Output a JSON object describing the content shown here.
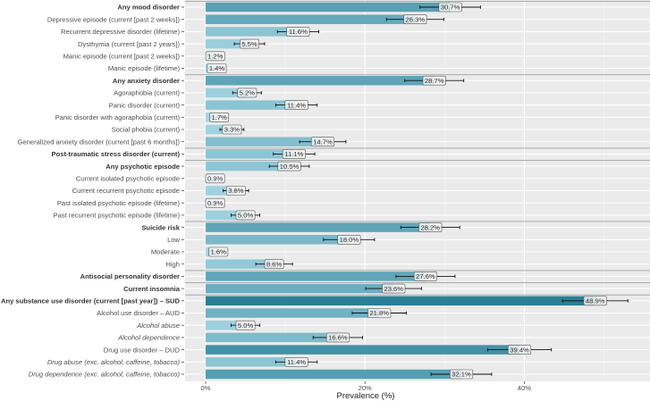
{
  "chart_data": {
    "type": "bar",
    "orientation": "horizontal",
    "title": "",
    "xlabel": "Prevalence (%)",
    "ylabel": "",
    "xlim": [
      0,
      55.8
    ],
    "x_ticks": [
      0,
      20,
      40
    ],
    "x_tick_labels": [
      "0%",
      "20%",
      "40%"
    ],
    "grid": true,
    "legend": "none",
    "color_low": "#a9d9e6",
    "color_high": "#2a7f96",
    "items": [
      {
        "label": "Any mood disorder",
        "value": 30.7,
        "ci": [
          26.9,
          34.5
        ],
        "style": "bold",
        "group_start": true
      },
      {
        "label": "Depressive episode (current [past 2 weeks])",
        "value": 26.3,
        "ci": [
          22.7,
          29.9
        ]
      },
      {
        "label": "Recurrent depressive disorder (lifetime)",
        "value": 11.6,
        "ci": [
          9.0,
          14.2
        ]
      },
      {
        "label": "Dysthymia (current [past 2 years])",
        "value": 5.5,
        "ci": [
          3.6,
          7.4
        ]
      },
      {
        "label": "Manic episode (current [past 2 weeks])",
        "value": 1.2,
        "ci": [
          0.3,
          2.1
        ]
      },
      {
        "label": "Manic episode (lifetime)",
        "value": 1.4,
        "ci": [
          0.4,
          2.4
        ]
      },
      {
        "label": "Any anxiety disorder",
        "value": 28.7,
        "ci": [
          25.0,
          32.4
        ],
        "style": "bold",
        "group_start": true
      },
      {
        "label": "Agoraphobia (current)",
        "value": 5.2,
        "ci": [
          3.4,
          7.0
        ]
      },
      {
        "label": "Panic disorder (current)",
        "value": 11.4,
        "ci": [
          8.8,
          14.0
        ]
      },
      {
        "label": "Panic disorder with agoraphobia (current)",
        "value": 1.7,
        "ci": [
          0.6,
          2.8
        ]
      },
      {
        "label": "Social phobia (current)",
        "value": 3.3,
        "ci": [
          1.8,
          4.8
        ]
      },
      {
        "label": "Generalized anxiety disorder (current [past 6 months])",
        "value": 14.7,
        "ci": [
          11.8,
          17.6
        ]
      },
      {
        "label": "Post-traumatic stress disorder (current)",
        "value": 11.1,
        "ci": [
          8.5,
          13.7
        ],
        "style": "bold",
        "group_start": true
      },
      {
        "label": "Any psychotic episode",
        "value": 10.5,
        "ci": [
          8.0,
          13.0
        ],
        "style": "bold",
        "group_start": true
      },
      {
        "label": "Current isolated psychotic episode",
        "value": 0.9,
        "ci": null
      },
      {
        "label": "Current recurrent psychotic episode",
        "value": 3.8,
        "ci": [
          2.2,
          5.4
        ]
      },
      {
        "label": "Past isolated psychotic episode (lifetime)",
        "value": 0.9,
        "ci": null
      },
      {
        "label": "Past recurrent psychotic episode (lifetime)",
        "value": 5.0,
        "ci": [
          3.2,
          6.8
        ]
      },
      {
        "label": "Suicide risk",
        "value": 28.2,
        "ci": [
          24.5,
          31.9
        ],
        "style": "bold",
        "group_start": true
      },
      {
        "label": "Low",
        "value": 18.0,
        "ci": [
          14.8,
          21.2
        ]
      },
      {
        "label": "Moderate",
        "value": 1.6,
        "ci": [
          0.6,
          2.6
        ]
      },
      {
        "label": "High",
        "value": 8.6,
        "ci": [
          6.3,
          10.9
        ]
      },
      {
        "label": "Antisocial personality disorder",
        "value": 27.6,
        "ci": [
          23.9,
          31.3
        ],
        "style": "bold",
        "group_start": true
      },
      {
        "label": "Current insomnia",
        "value": 23.6,
        "ci": [
          20.1,
          27.1
        ],
        "style": "bold",
        "group_start": true
      },
      {
        "label": "Any substance use disorder (current [past year]) – SUD",
        "value": 48.9,
        "ci": [
          44.8,
          53.0
        ],
        "style": "bold",
        "group_start": true
      },
      {
        "label": "Alcohol use disorder  – AUD",
        "value": 21.8,
        "ci": [
          18.4,
          25.2
        ]
      },
      {
        "label": "Alcohol abuse",
        "value": 5.0,
        "ci": [
          3.2,
          6.8
        ],
        "style": "italic"
      },
      {
        "label": "Alcohol dependence",
        "value": 16.6,
        "ci": [
          13.5,
          19.7
        ],
        "style": "italic"
      },
      {
        "label": "Drug use disorder  – DUD",
        "value": 39.4,
        "ci": [
          35.4,
          43.4
        ]
      },
      {
        "label": "Drug abuse (exc. alcohol, caffeine, tobacco)",
        "value": 11.4,
        "ci": [
          8.8,
          14.0
        ],
        "style": "italic"
      },
      {
        "label": "Drug dependence (exc. alcohol, caffeine, tobacco)",
        "value": 32.1,
        "ci": [
          28.3,
          35.9
        ],
        "style": "italic"
      }
    ]
  }
}
